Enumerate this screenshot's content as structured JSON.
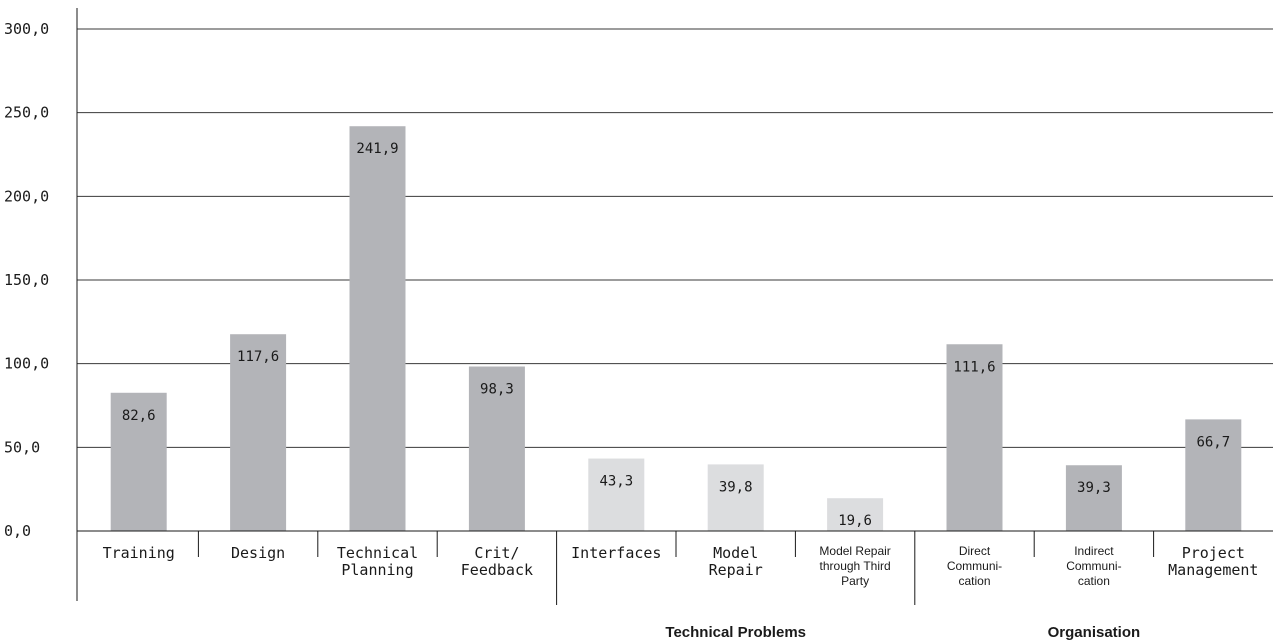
{
  "chart_data": {
    "type": "bar",
    "categories": [
      "Training",
      "Design",
      "Technical Planning",
      "Crit/ Feedback",
      "Interfaces",
      "Model Repair",
      "Model Repair through Third Party",
      "Direct Communi- cation",
      "Indirect Communi- cation",
      "Project Management"
    ],
    "category_lines": [
      [
        "Training"
      ],
      [
        "Design"
      ],
      [
        "Technical",
        "Planning"
      ],
      [
        "Crit/",
        "Feedback"
      ],
      [
        "Interfaces"
      ],
      [
        "Model",
        "Repair"
      ],
      [
        "Model Repair",
        "through Third",
        "Party"
      ],
      [
        "Direct",
        "Communi-",
        "cation"
      ],
      [
        "Indirect",
        "Communi-",
        "cation"
      ],
      [
        "Project",
        "Management"
      ]
    ],
    "values": [
      82.6,
      117.6,
      241.9,
      98.3,
      43.3,
      39.8,
      19.6,
      111.6,
      39.3,
      66.7
    ],
    "value_labels": [
      "82,6",
      "117,6",
      "241,9",
      "98,3",
      "43,3",
      "39,8",
      "19,6",
      "111,6",
      "39,3",
      "66,7"
    ],
    "bar_colors": [
      "#b3b4b8",
      "#b3b4b8",
      "#b3b4b8",
      "#b3b4b8",
      "#dcdddf",
      "#dcdddf",
      "#dcdddf",
      "#b3b4b8",
      "#b3b4b8",
      "#b3b4b8"
    ],
    "yticks": [
      "0,0",
      "50,0",
      "100,0",
      "150,0",
      "200,0",
      "250,0",
      "300,0"
    ],
    "ylim": [
      0,
      300
    ],
    "grid": true,
    "groups": [
      {
        "label": "Technical Problems",
        "span": [
          4,
          6
        ]
      },
      {
        "label": "Organisation",
        "span": [
          7,
          9
        ]
      }
    ],
    "title": "",
    "xlabel": "",
    "ylabel": ""
  }
}
